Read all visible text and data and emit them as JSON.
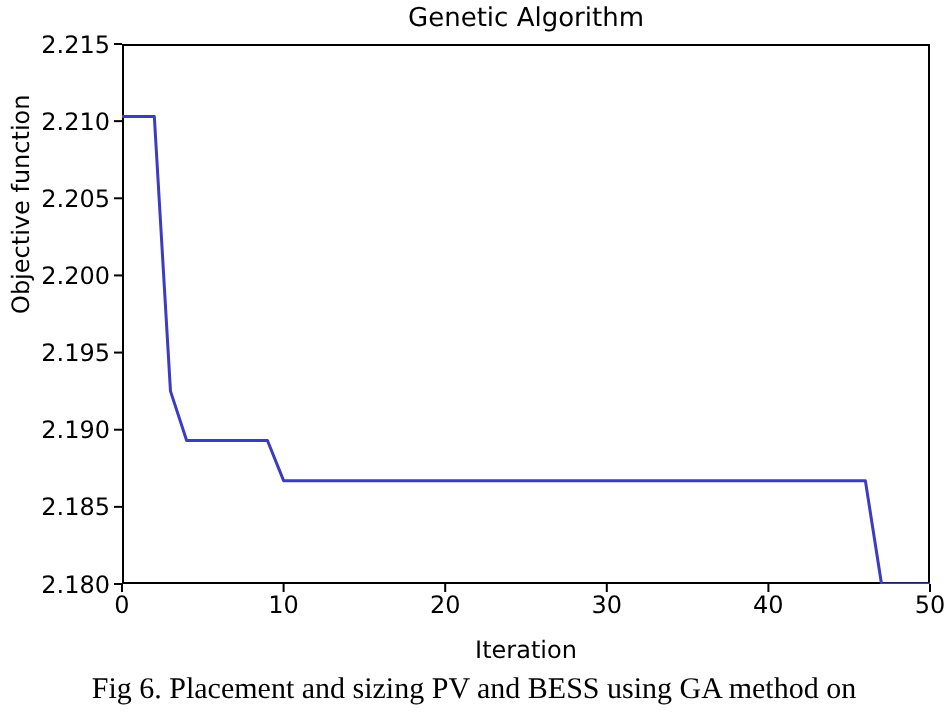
{
  "chart_data": {
    "type": "line",
    "title": "Genetic Algorithm",
    "xlabel": "Iteration",
    "ylabel": "Objective function",
    "annotations": [
      "Fig 6. Placement and sizing PV and BESS using GA method on"
    ],
    "series": [
      {
        "color": "#3b3bc4",
        "x": [
          0,
          2,
          3,
          4,
          9,
          10,
          46,
          47,
          50
        ],
        "values": [
          2.2103,
          2.2103,
          2.1925,
          2.1893,
          2.1893,
          2.1867,
          2.1867,
          2.18,
          2.18
        ]
      }
    ],
    "xlim": [
      0,
      50
    ],
    "xticks": [
      0,
      10,
      20,
      30,
      40,
      50
    ],
    "ylim": [
      2.18,
      2.215
    ],
    "yticks": [
      {
        "value": 2.18,
        "label": "2.180"
      },
      {
        "value": 2.185,
        "label": "2.185"
      },
      {
        "value": 2.19,
        "label": "2.190"
      },
      {
        "value": 2.195,
        "label": "2.195"
      },
      {
        "value": 2.2,
        "label": "2.200"
      },
      {
        "value": 2.205,
        "label": "2.205"
      },
      {
        "value": 2.21,
        "label": "2.210"
      },
      {
        "value": 2.215,
        "label": "2.215"
      }
    ],
    "grid": false,
    "marker": "none",
    "line_style": "solid"
  }
}
